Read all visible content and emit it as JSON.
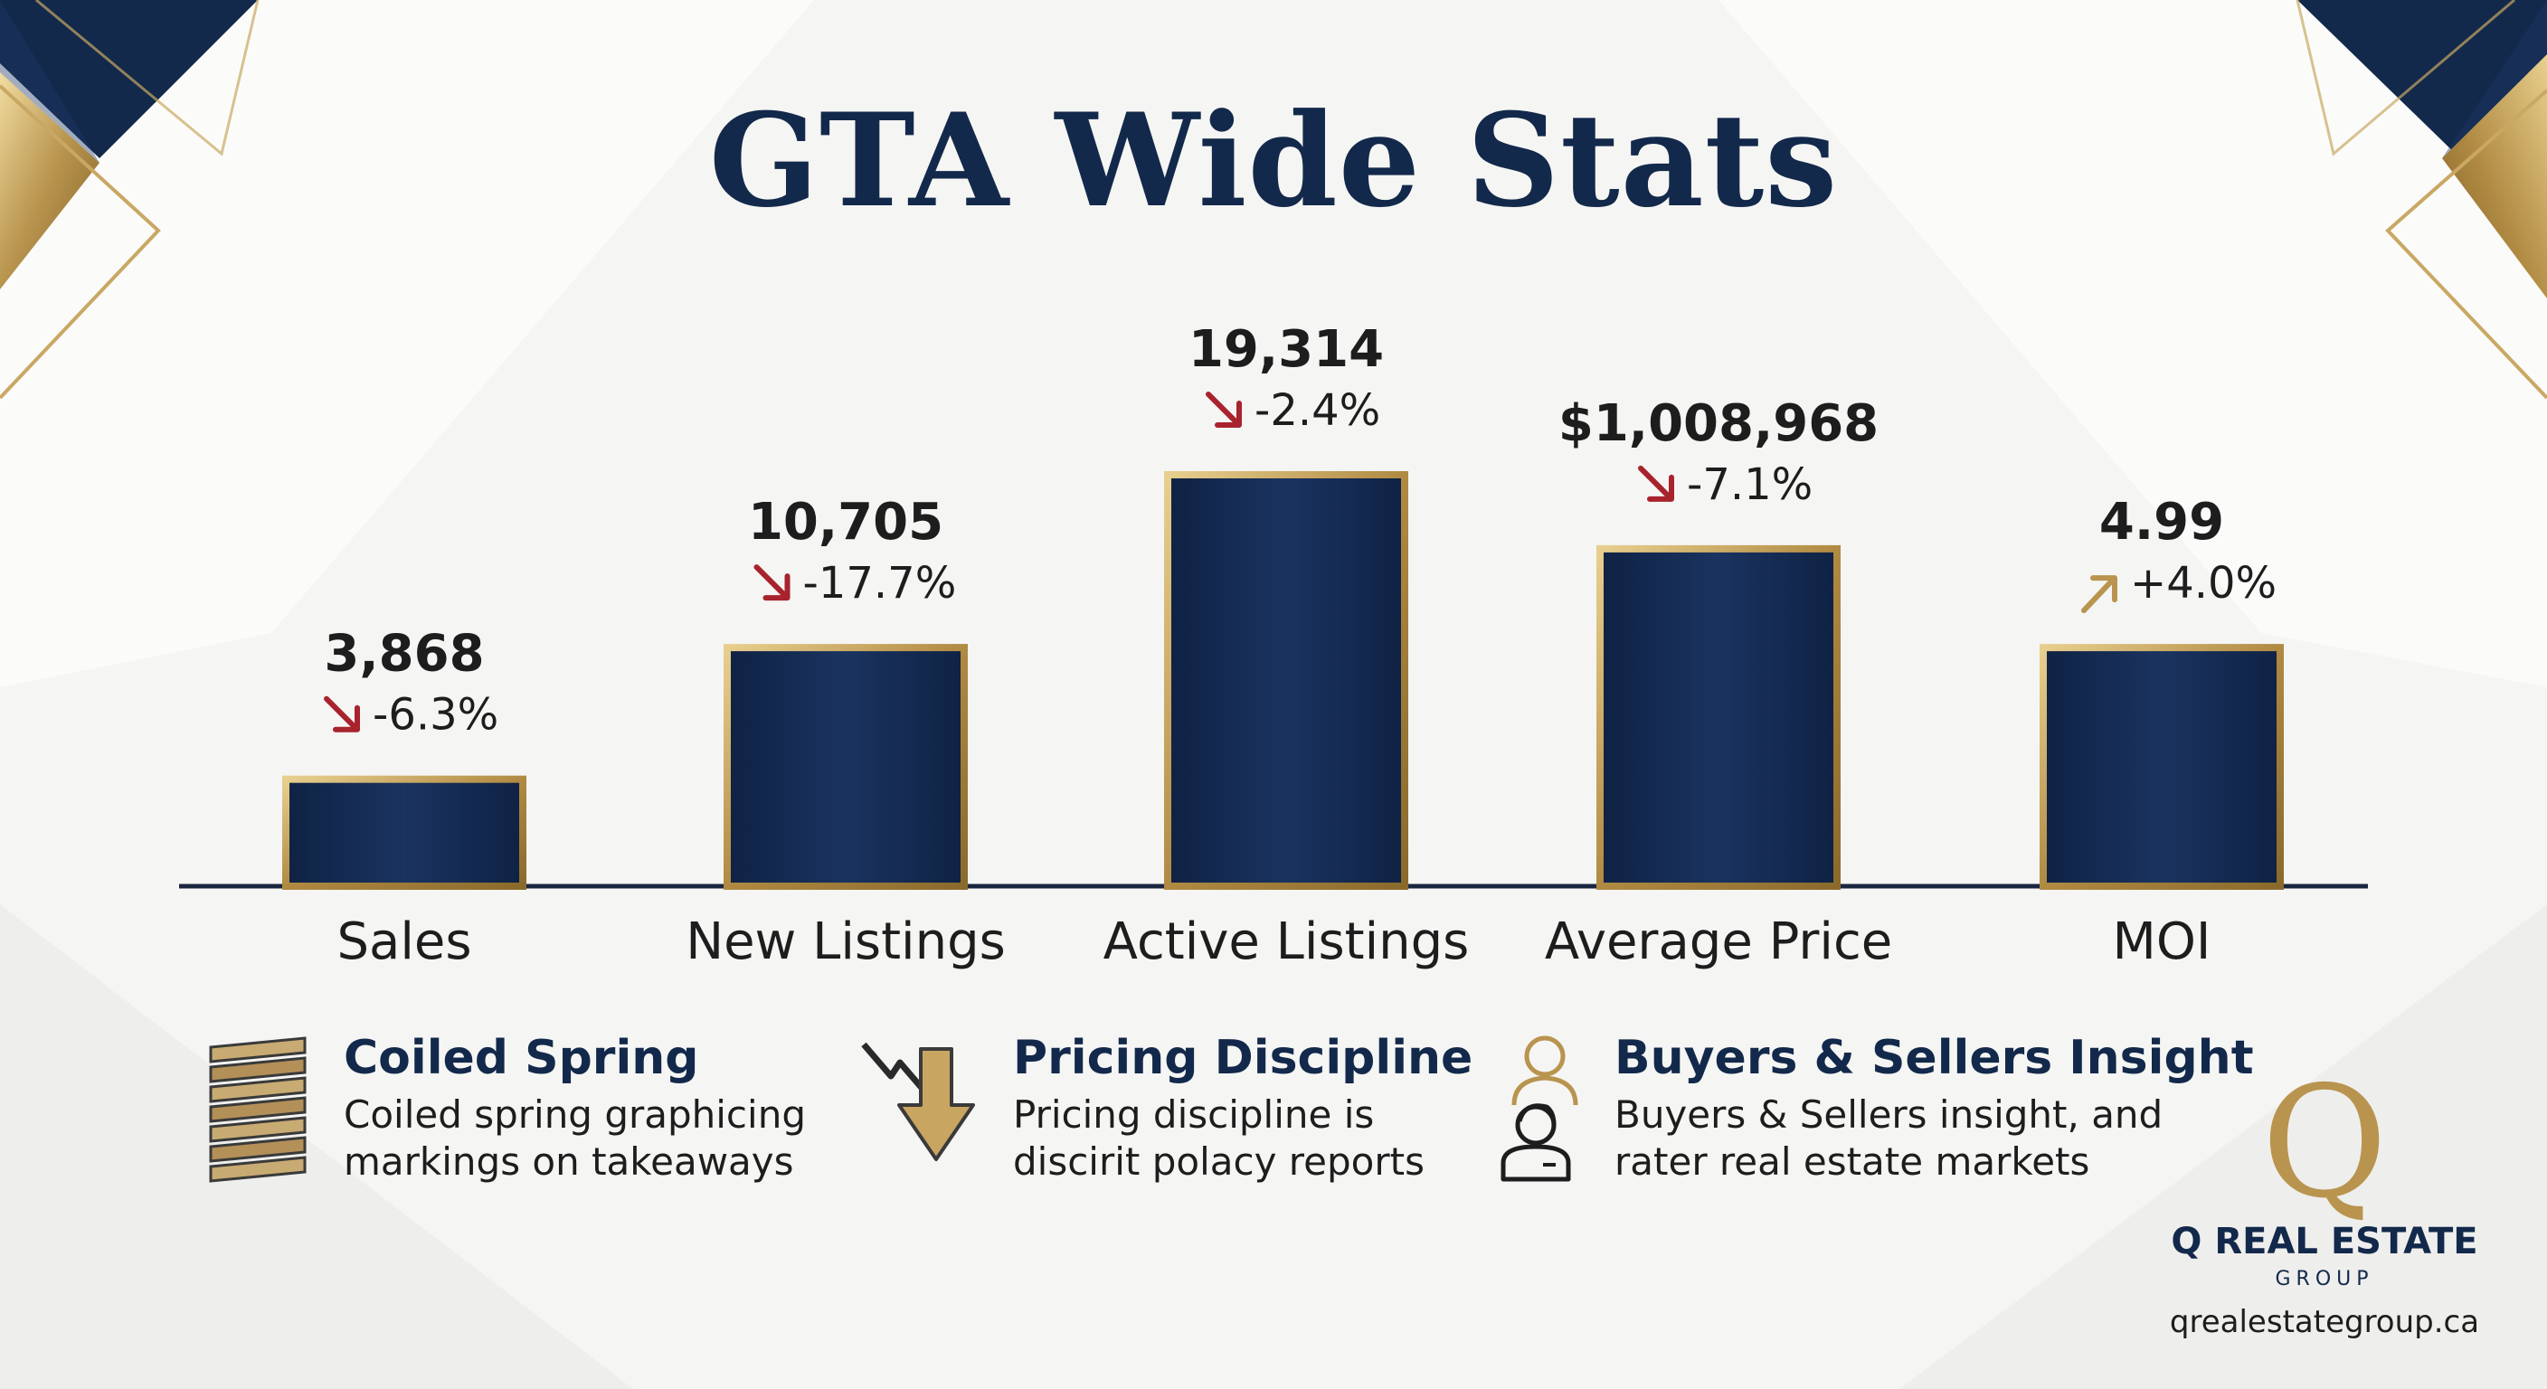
{
  "title": "GTA Wide Stats",
  "colors": {
    "navy": "#13294b",
    "gold": "#b8944e",
    "down_arrow": "#a8232d",
    "up_arrow": "#b8944e",
    "background": "#f5f5f3"
  },
  "chart_data": {
    "type": "bar",
    "title": "GTA Wide Stats",
    "xlabel": "",
    "ylabel": "",
    "categories": [
      "Sales",
      "New Listings",
      "Active Listings",
      "Average Price",
      "MOI"
    ],
    "values": [
      3868,
      10705,
      19314,
      1008968,
      4.99
    ],
    "display_values": [
      "3,868",
      "10,705",
      "19,314",
      "$1,008,968",
      "4.99"
    ],
    "changes": [
      "-6.3%",
      "-17.7%",
      "-2.4%",
      "-7.1%",
      "+4.0%"
    ],
    "change_direction": [
      "down",
      "down",
      "down",
      "down",
      "up"
    ],
    "relative_heights": [
      0.26,
      0.58,
      1.0,
      0.82,
      0.58
    ],
    "note": "Each bar is drawn on its own scale; bars are illustrative"
  },
  "features": [
    {
      "icon": "coiled-spring-icon",
      "heading": "Coiled Spring",
      "lines": [
        "Coiled spring graphicing",
        "markings on takeaways"
      ]
    },
    {
      "icon": "price-drop-arrow-icon",
      "heading": "Pricing Discipline",
      "lines": [
        "Pricing discipline is",
        "discirit polacy reports"
      ]
    },
    {
      "icon": "buyers-sellers-icon",
      "heading": "Buyers & Sellers Insight",
      "lines": [
        "Buyers & Sellers insight, and",
        "rater real estate markets"
      ]
    }
  ],
  "logo": {
    "letter": "Q",
    "name": "Q REAL ESTATE",
    "sub": "GROUP",
    "url": "qrealestategroup.ca"
  }
}
